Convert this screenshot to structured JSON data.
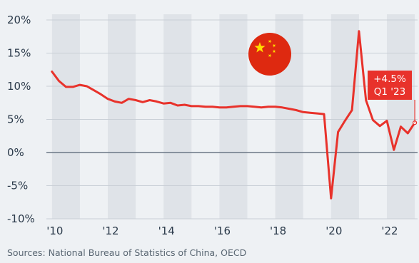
{
  "colors": {
    "line": "#e8322b",
    "band": "#dfe3e8",
    "background": "#eef1f4",
    "zero_line": "#6b7785",
    "flag_red": "#de2910",
    "flag_star": "#ffde00"
  },
  "icons": {
    "flag": "china-flag-icon"
  },
  "source_text": "Sources: National Bureau of Statistics of China, OECD",
  "annotation": {
    "value": "+4.5%",
    "period": "Q1 '23"
  },
  "chart_data": {
    "type": "line",
    "title": "",
    "xlabel": "",
    "ylabel": "",
    "x_tick_labels": [
      "'10",
      "'12",
      "'14",
      "'16",
      "'18",
      "'20",
      "'22"
    ],
    "x_tick_years": [
      2010,
      2012,
      2014,
      2016,
      2018,
      2020,
      2022
    ],
    "y_tick_labels": [
      "20%",
      "15%",
      "10%",
      "5%",
      "0%",
      "-5%",
      "-10%"
    ],
    "y_ticks": [
      20,
      15,
      10,
      5,
      0,
      -5,
      -10
    ],
    "ylim": [
      -10,
      20
    ],
    "xlim": [
      2009.8,
      2023.1
    ],
    "grid": true,
    "legend": "none",
    "series": [
      {
        "x": [
          2010.0,
          2010.25,
          2010.5,
          2010.75,
          2011.0,
          2011.25,
          2011.5,
          2011.75,
          2012.0,
          2012.25,
          2012.5,
          2012.75,
          2013.0,
          2013.25,
          2013.5,
          2013.75,
          2014.0,
          2014.25,
          2014.5,
          2014.75,
          2015.0,
          2015.25,
          2015.5,
          2015.75,
          2016.0,
          2016.25,
          2016.5,
          2016.75,
          2017.0,
          2017.25,
          2017.5,
          2017.75,
          2018.0,
          2018.25,
          2018.5,
          2018.75,
          2019.0,
          2019.25,
          2019.5,
          2019.75,
          2020.0,
          2020.25,
          2020.5,
          2020.75,
          2021.0,
          2021.25,
          2021.5,
          2021.75,
          2022.0,
          2022.25,
          2022.5,
          2022.75,
          2023.0
        ],
        "values": [
          12.2,
          10.8,
          9.9,
          9.9,
          10.2,
          10.0,
          9.4,
          8.8,
          8.1,
          7.7,
          7.5,
          8.1,
          7.9,
          7.6,
          7.9,
          7.7,
          7.4,
          7.5,
          7.1,
          7.2,
          7.0,
          7.0,
          6.9,
          6.9,
          6.8,
          6.8,
          6.9,
          7.0,
          7.0,
          6.9,
          6.8,
          6.9,
          6.9,
          6.8,
          6.6,
          6.4,
          6.1,
          6.0,
          5.9,
          5.8,
          -6.9,
          3.1,
          4.8,
          6.4,
          18.3,
          7.9,
          4.9,
          4.0,
          4.8,
          0.4,
          3.9,
          2.9,
          4.5
        ]
      }
    ]
  }
}
